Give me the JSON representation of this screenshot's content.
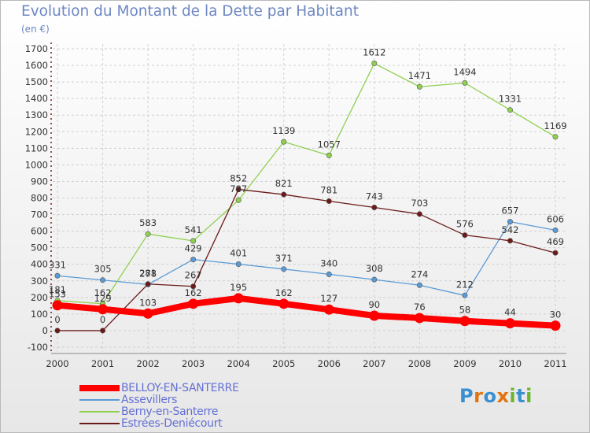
{
  "title": "Evolution du Montant de la Dette par Habitant",
  "subtitle": "(en €)",
  "logo": {
    "text": "Proxiti",
    "letters": [
      "P",
      "r",
      "o",
      "x",
      "i",
      "t",
      "i"
    ],
    "colors": [
      "#3a8fd0",
      "#e2730f",
      "#3a8fd0",
      "#e2730f",
      "#6cb52d",
      "#3a8fd0",
      "#6cb52d"
    ]
  },
  "chart_data": {
    "type": "line",
    "x": [
      "2000",
      "2001",
      "2002",
      "2003",
      "2004",
      "2005",
      "2006",
      "2007",
      "2008",
      "2009",
      "2010",
      "2011"
    ],
    "ylim": [
      -100,
      1700
    ],
    "yticks": [
      "-100",
      "0",
      "100",
      "200",
      "300",
      "400",
      "500",
      "600",
      "700",
      "800",
      "900",
      "1000",
      "1100",
      "1200",
      "1300",
      "1400",
      "1500",
      "1600",
      "1700"
    ],
    "grid": true,
    "series": [
      {
        "name": "BELLOY-EN-SANTERRE",
        "values": [
          153,
          129,
          103,
          162,
          195,
          162,
          127,
          90,
          76,
          58,
          44,
          30
        ],
        "labels": [
          "153",
          "129",
          "103",
          "162",
          "195",
          "162",
          "127",
          "90",
          "76",
          "58",
          "44",
          "30"
        ],
        "color": "#ff0000",
        "bold": true
      },
      {
        "name": "Assevillers",
        "values": [
          331,
          305,
          278,
          429,
          401,
          371,
          340,
          308,
          274,
          212,
          657,
          606
        ],
        "labels": [
          "331",
          "305",
          "278",
          "429",
          "401",
          "371",
          "340",
          "308",
          "274",
          "212",
          "657",
          "606"
        ],
        "color": "#5b9bd5",
        "bold": false
      },
      {
        "name": "Berny-en-Santerre",
        "values": [
          181,
          162,
          583,
          541,
          787,
          1139,
          1057,
          1612,
          1471,
          1494,
          1331,
          1169
        ],
        "labels": [
          "181",
          "162",
          "583",
          "541",
          "787",
          "1139",
          "1057",
          "1612",
          "1471",
          "1494",
          "1331",
          "1169"
        ],
        "color": "#8fd14f",
        "bold": false
      },
      {
        "name": "Estrées-Deniécourt",
        "values": [
          0,
          0,
          281,
          267,
          852,
          821,
          781,
          743,
          703,
          576,
          542,
          469
        ],
        "labels": [
          "0",
          "0",
          "281",
          "267",
          "852",
          "821",
          "781",
          "743",
          "703",
          "576",
          "542",
          "469"
        ],
        "color": "#6b1a1a",
        "bold": false
      }
    ]
  }
}
